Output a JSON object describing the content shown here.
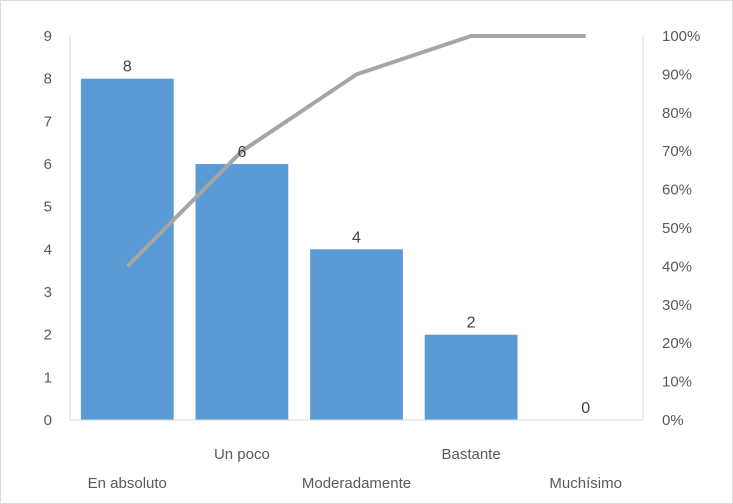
{
  "chart_data": {
    "type": "bar",
    "categories": [
      "En absoluto",
      "Un poco",
      "Moderadamente",
      "Bastante",
      "Muchísimo"
    ],
    "series": [
      {
        "type": "bar",
        "values": [
          8,
          6,
          4,
          2,
          0
        ],
        "color": "#5b9bd5",
        "data_labels": [
          "8",
          "6",
          "4",
          "2",
          "0"
        ]
      },
      {
        "type": "line",
        "axis": "right",
        "values": [
          40,
          70,
          90,
          100,
          100
        ],
        "color": "#a5a5a5"
      }
    ],
    "title": "",
    "xlabel": "",
    "ylabel": "",
    "ylim": [
      0,
      9
    ],
    "y2lim": [
      0,
      100
    ],
    "y_ticks": [
      "0",
      "1",
      "2",
      "3",
      "4",
      "5",
      "6",
      "7",
      "8",
      "9"
    ],
    "y2_ticks": [
      "0%",
      "10%",
      "20%",
      "30%",
      "40%",
      "50%",
      "60%",
      "70%",
      "80%",
      "90%",
      "100%"
    ],
    "grid": false,
    "legend": "none"
  }
}
